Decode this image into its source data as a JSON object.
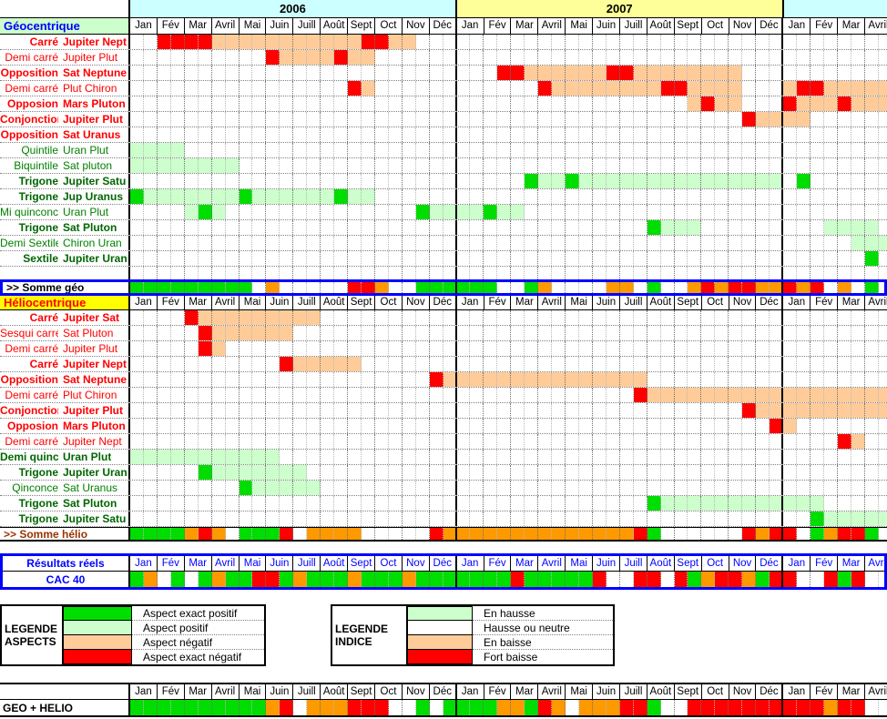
{
  "palette": {
    "G": "#00DD00",
    "g": "#CCFFCC",
    "o": "#FFCC99",
    "R": "#FF0000",
    "O": "#FF9900",
    ".": "#FFFFFF"
  },
  "month_names": [
    "Jan",
    "Fév",
    "Mar",
    "Avril",
    "Mai",
    "Juin",
    "Juill",
    "Août",
    "Sept",
    "Oct",
    "Nov",
    "Déc"
  ],
  "years": [
    {
      "label": "2006",
      "bg": "#CCFFFF",
      "months": 12
    },
    {
      "label": "2007",
      "bg": "#FFFF99",
      "months": 12
    },
    {
      "label": "",
      "bg": "#CCFFFF",
      "months": 4
    }
  ],
  "geo": {
    "header": "Géocentrique",
    "rows": [
      {
        "type": "Carré",
        "planets": "Jupiter Nept",
        "style": "bold-red",
        "cells": [
          [
            ".",
            2
          ],
          [
            "R",
            4
          ],
          [
            "o",
            11
          ],
          [
            "R",
            2
          ],
          [
            "o",
            2
          ]
        ]
      },
      {
        "type": "Demi carré",
        "planets": "Jupiter Plut",
        "style": "red",
        "cells": [
          [
            ".",
            10
          ],
          [
            "R",
            1
          ],
          [
            "o",
            4
          ],
          [
            "R",
            1
          ],
          [
            "o",
            2
          ]
        ]
      },
      {
        "type": "Opposition",
        "planets": "Sat Neptune",
        "style": "bold-red",
        "cells": [
          [
            ".",
            27
          ],
          [
            "R",
            2
          ],
          [
            "o",
            6
          ],
          [
            "R",
            2
          ],
          [
            "o",
            8
          ]
        ]
      },
      {
        "type": "Demi carré",
        "planets": "Plut Chiron",
        "style": "red",
        "cells": [
          [
            ".",
            16
          ],
          [
            "R",
            1
          ],
          [
            "o",
            1
          ],
          [
            ".",
            12
          ],
          [
            "R",
            1
          ],
          [
            "o",
            8
          ],
          [
            "R",
            2
          ],
          [
            "o",
            4
          ],
          [
            ".",
            3
          ],
          [
            "o",
            1
          ],
          [
            "R",
            2
          ],
          [
            "o",
            5
          ]
        ]
      },
      {
        "type": "Opposion",
        "planets": "Mars Pluton",
        "style": "bold-red",
        "cells": [
          [
            ".",
            41
          ],
          [
            "o",
            1
          ],
          [
            "R",
            1
          ],
          [
            "o",
            2
          ],
          [
            ".",
            3
          ],
          [
            "R",
            1
          ],
          [
            "o",
            3
          ],
          [
            "R",
            1
          ],
          [
            "o",
            3
          ]
        ]
      },
      {
        "type": "Conjonction",
        "planets": "Jupiter Plut",
        "style": "bold-red",
        "cells": [
          [
            ".",
            45
          ],
          [
            "R",
            1
          ],
          [
            "o",
            4
          ]
        ]
      },
      {
        "type": "Opposition",
        "planets": "Sat Uranus",
        "style": "bold-red",
        "cells": []
      },
      {
        "type": "Quintile",
        "planets": "Uran Plut",
        "style": "green",
        "cells": [
          [
            "g",
            4
          ]
        ]
      },
      {
        "type": "Biquintile",
        "planets": "Sat pluton",
        "style": "green",
        "cells": [
          [
            "g",
            8
          ]
        ]
      },
      {
        "type": "Trigone",
        "planets": "Jupiter Satu",
        "style": "bold-green",
        "cells": [
          [
            ".",
            29
          ],
          [
            "G",
            1
          ],
          [
            "g",
            2
          ],
          [
            "G",
            1
          ],
          [
            "g",
            15
          ],
          [
            ".",
            1
          ],
          [
            "G",
            1
          ]
        ]
      },
      {
        "type": "Trigone",
        "planets": "Jup Uranus",
        "style": "bold-green",
        "cells": [
          [
            "G",
            1
          ],
          [
            "g",
            7
          ],
          [
            "G",
            1
          ],
          [
            "g",
            6
          ],
          [
            "G",
            1
          ],
          [
            "g",
            2
          ]
        ]
      },
      {
        "type": "Mi quinconce",
        "planets": "Uran Plut",
        "style": "green",
        "cells": [
          [
            ".",
            4
          ],
          [
            "g",
            1
          ],
          [
            "G",
            1
          ],
          [
            "g",
            1
          ],
          [
            ".",
            14
          ],
          [
            "G",
            1
          ],
          [
            "g",
            4
          ],
          [
            "G",
            1
          ],
          [
            "g",
            2
          ]
        ]
      },
      {
        "type": "Trigone",
        "planets": "Sat Pluton",
        "style": "bold-green",
        "cells": [
          [
            ".",
            38
          ],
          [
            "G",
            1
          ],
          [
            "g",
            3
          ],
          [
            ".",
            9
          ],
          [
            "g",
            4
          ]
        ]
      },
      {
        "type": "Demi Sextile",
        "planets": "Chiron Uran",
        "style": "green",
        "cells": [
          [
            ".",
            53
          ],
          [
            "g",
            3
          ]
        ]
      },
      {
        "type": "Sextile",
        "planets": "Jupiter Uran",
        "style": "bold-green",
        "cells": [
          [
            ".",
            54
          ],
          [
            "G",
            1
          ]
        ]
      }
    ],
    "somme": {
      "label": ">> Somme géo",
      "cells": [
        [
          "G",
          9
        ],
        [
          ".",
          1
        ],
        [
          "O",
          1
        ],
        [
          ".",
          5
        ],
        [
          "R",
          2
        ],
        [
          "O",
          1
        ],
        [
          ".",
          2
        ],
        [
          "G",
          6
        ],
        [
          ".",
          2
        ],
        [
          "G",
          1
        ],
        [
          "O",
          1
        ],
        [
          ".",
          4
        ],
        [
          "O",
          2
        ],
        [
          ".",
          1
        ],
        [
          "G",
          1
        ],
        [
          ".",
          2
        ],
        [
          "O",
          1
        ],
        [
          "R",
          1
        ],
        [
          "O",
          1
        ],
        [
          "R",
          2
        ],
        [
          "O",
          2
        ],
        [
          "R",
          1
        ],
        [
          "O",
          1
        ],
        [
          "R",
          1
        ],
        [
          ".",
          1
        ],
        [
          "O",
          1
        ],
        [
          ".",
          1
        ],
        [
          "G",
          1
        ]
      ]
    }
  },
  "helio": {
    "header": "Héliocentrique",
    "rows": [
      {
        "type": "Carré",
        "planets": "Jupiter Sat",
        "style": "bold-red",
        "cells": [
          [
            ".",
            4
          ],
          [
            "R",
            1
          ],
          [
            "o",
            9
          ]
        ]
      },
      {
        "type": "Sesqui carré",
        "planets": "Sat Pluton",
        "style": "red",
        "cells": [
          [
            ".",
            5
          ],
          [
            "R",
            1
          ],
          [
            "o",
            6
          ]
        ]
      },
      {
        "type": "Demi carré",
        "planets": "Jupiter Plut",
        "style": "red",
        "cells": [
          [
            ".",
            5
          ],
          [
            "R",
            1
          ],
          [
            "o",
            1
          ]
        ]
      },
      {
        "type": "Carré",
        "planets": "Jupiter Nept",
        "style": "bold-red",
        "cells": [
          [
            ".",
            11
          ],
          [
            "R",
            1
          ],
          [
            "o",
            5
          ]
        ]
      },
      {
        "type": "Opposition",
        "planets": "Sat Neptune",
        "style": "bold-red",
        "cells": [
          [
            ".",
            22
          ],
          [
            "R",
            1
          ],
          [
            "o",
            15
          ]
        ]
      },
      {
        "type": "Demi carré",
        "planets": "Plut Chiron",
        "style": "red",
        "cells": [
          [
            ".",
            37
          ],
          [
            "R",
            1
          ],
          [
            "o",
            18
          ]
        ]
      },
      {
        "type": "Conjonction",
        "planets": "Jupiter Plut",
        "style": "bold-red",
        "cells": [
          [
            ".",
            45
          ],
          [
            "R",
            1
          ],
          [
            "o",
            10
          ]
        ]
      },
      {
        "type": "Opposion",
        "planets": "Mars Pluton",
        "style": "bold-red",
        "cells": [
          [
            ".",
            47
          ],
          [
            "R",
            1
          ],
          [
            "o",
            1
          ]
        ]
      },
      {
        "type": "Demi carré",
        "planets": "Jupiter Nept",
        "style": "red",
        "cells": [
          [
            ".",
            52
          ],
          [
            "R",
            1
          ],
          [
            "o",
            1
          ]
        ]
      },
      {
        "type": "Demi quinc",
        "planets": "Uran Plut",
        "style": "bold-green",
        "cells": [
          [
            "g",
            11
          ]
        ]
      },
      {
        "type": "Trigone",
        "planets": "Jupiter Uran",
        "style": "bold-green",
        "cells": [
          [
            ".",
            5
          ],
          [
            "G",
            1
          ],
          [
            "g",
            7
          ]
        ]
      },
      {
        "type": "Qinconce",
        "planets": "Sat Uranus",
        "style": "green",
        "cells": [
          [
            ".",
            8
          ],
          [
            "G",
            1
          ],
          [
            "g",
            5
          ]
        ]
      },
      {
        "type": "Trigone",
        "planets": "Sat Pluton",
        "style": "bold-green",
        "cells": [
          [
            ".",
            38
          ],
          [
            "G",
            1
          ],
          [
            "g",
            12
          ]
        ]
      },
      {
        "type": "Trigone",
        "planets": "Jupiter Satu",
        "style": "bold-green",
        "cells": [
          [
            ".",
            50
          ],
          [
            "G",
            1
          ],
          [
            "g",
            5
          ]
        ]
      }
    ],
    "somme": {
      "label": ">> Somme hélio",
      "cells": [
        [
          "G",
          4
        ],
        [
          "O",
          1
        ],
        [
          "R",
          1
        ],
        [
          "O",
          1
        ],
        [
          ".",
          1
        ],
        [
          "G",
          3
        ],
        [
          "R",
          1
        ],
        [
          ".",
          1
        ],
        [
          "O",
          4
        ],
        [
          ".",
          5
        ],
        [
          "R",
          1
        ],
        [
          "O",
          14
        ],
        [
          "R",
          1
        ],
        [
          "G",
          1
        ],
        [
          ".",
          6
        ],
        [
          "R",
          1
        ],
        [
          "O",
          1
        ],
        [
          "R",
          2
        ],
        [
          ".",
          1
        ],
        [
          "G",
          1
        ],
        [
          "O",
          1
        ],
        [
          "R",
          2
        ],
        [
          "G",
          1
        ]
      ]
    }
  },
  "resultats": {
    "title": "Résultats réels",
    "index_label": "CAC 40",
    "cells": [
      [
        "G",
        1
      ],
      [
        "O",
        1
      ],
      [
        ".",
        1
      ],
      [
        "G",
        1
      ],
      [
        ".",
        1
      ],
      [
        "G",
        1
      ],
      [
        "O",
        1
      ],
      [
        "G",
        2
      ],
      [
        "R",
        2
      ],
      [
        "G",
        1
      ],
      [
        "O",
        1
      ],
      [
        "G",
        3
      ],
      [
        "O",
        1
      ],
      [
        "G",
        3
      ],
      [
        "O",
        1
      ],
      [
        "G",
        7
      ],
      [
        "R",
        1
      ],
      [
        "G",
        5
      ],
      [
        "R",
        1
      ],
      [
        ".",
        2
      ],
      [
        "R",
        2
      ],
      [
        ".",
        1
      ],
      [
        "R",
        1
      ],
      [
        "G",
        1
      ],
      [
        "O",
        1
      ],
      [
        "R",
        2
      ],
      [
        "O",
        1
      ],
      [
        "G",
        1
      ],
      [
        "R",
        2
      ],
      [
        ".",
        2
      ],
      [
        "R",
        1
      ],
      [
        "G",
        1
      ],
      [
        "R",
        1
      ]
    ]
  },
  "geo_helio": {
    "label": "GEO + HELIO",
    "cells": [
      [
        "G",
        10
      ],
      [
        "O",
        1
      ],
      [
        "R",
        1
      ],
      [
        ".",
        1
      ],
      [
        "O",
        3
      ],
      [
        "R",
        3
      ],
      [
        ".",
        2
      ],
      [
        "G",
        1
      ],
      [
        ".",
        1
      ],
      [
        "G",
        4
      ],
      [
        "O",
        2
      ],
      [
        "G",
        1
      ],
      [
        "R",
        1
      ],
      [
        "O",
        1
      ],
      [
        ".",
        1
      ],
      [
        "O",
        3
      ],
      [
        "R",
        2
      ],
      [
        "G",
        1
      ],
      [
        ".",
        2
      ],
      [
        "R",
        10
      ],
      [
        "O",
        1
      ],
      [
        "R",
        2
      ]
    ]
  },
  "legend_aspects": {
    "title_lines": [
      "LEGENDE",
      "ASPECTS"
    ],
    "items": [
      {
        "color": "#00DD00",
        "label": "Aspect exact positif"
      },
      {
        "color": "#CCFFCC",
        "label": "Aspect positif"
      },
      {
        "color": "#FFCC99",
        "label": "Aspect négatif"
      },
      {
        "color": "#FF0000",
        "label": "Aspect exact négatif"
      }
    ]
  },
  "legend_indice": {
    "title_lines": [
      "LEGENDE",
      "INDICE"
    ],
    "items": [
      {
        "color": "#CCFFCC",
        "label": "En hausse"
      },
      {
        "color": "#FFFFFF",
        "label": "Hausse ou neutre"
      },
      {
        "color": "#FFCC99",
        "label": "En baisse"
      },
      {
        "color": "#FF0000",
        "label": "Fort baisse"
      }
    ]
  }
}
